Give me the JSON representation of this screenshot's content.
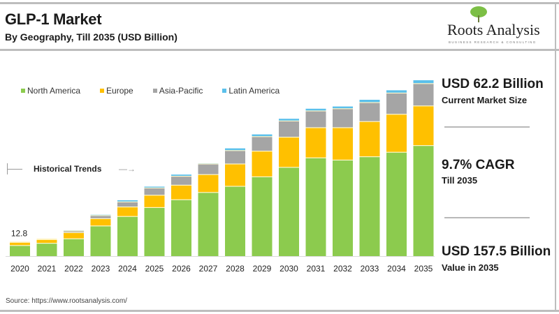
{
  "header": {
    "title": "GLP-1 Market",
    "subtitle": "By Geography, Till 2035 (USD Billion)"
  },
  "logo": {
    "name": "Roots Analysis",
    "tagline": "BUSINESS RESEARCH & CONSULTING",
    "icon": "tree-icon"
  },
  "annotation": {
    "historical_label": "Historical Trends",
    "first_value_label": "12.8"
  },
  "side_panel": {
    "current_value": "USD 62.2 Billion",
    "current_caption": "Current Market Size",
    "cagr_value": "9.7% CAGR",
    "cagr_caption": "Till 2035",
    "future_value": "USD 157.5 Billion",
    "future_caption": "Value in 2035"
  },
  "footer": {
    "source": "Source: https://www.rootsanalysis.com/"
  },
  "chart_data": {
    "type": "bar",
    "stacked": true,
    "title": "GLP-1 Market",
    "subtitle": "By Geography, Till 2035 (USD Billion)",
    "xlabel": "",
    "ylabel": "USD Billion",
    "ylim": [
      0,
      160
    ],
    "grid": false,
    "legend_position": "top-left",
    "categories": [
      "2020",
      "2021",
      "2022",
      "2023",
      "2024",
      "2025",
      "2026",
      "2027",
      "2028",
      "2029",
      "2030",
      "2031",
      "2032",
      "2033",
      "2034",
      "2035"
    ],
    "series": [
      {
        "name": "North America",
        "color": "#8ccb4e",
        "values": [
          9.5,
          11.5,
          15.5,
          27.0,
          35.5,
          43.5,
          50.5,
          57.0,
          62.5,
          71.0,
          79.5,
          88.0,
          86.0,
          89.0,
          93.0,
          99.0
        ]
      },
      {
        "name": "Europe",
        "color": "#ffc000",
        "values": [
          2.8,
          3.3,
          5.5,
          6.5,
          8.5,
          11.0,
          13.0,
          16.0,
          20.0,
          23.0,
          27.0,
          27.0,
          29.0,
          31.5,
          34.0,
          35.5
        ]
      },
      {
        "name": "Asia-Pacific",
        "color": "#a5a5a5",
        "values": [
          0.4,
          0.6,
          1.5,
          2.8,
          4.5,
          6.5,
          8.0,
          9.5,
          12.0,
          13.0,
          14.5,
          15.0,
          17.0,
          17.0,
          19.0,
          20.0
        ]
      },
      {
        "name": "Latin America",
        "color": "#5bc0eb",
        "values": [
          0.1,
          0.2,
          0.5,
          0.7,
          1.5,
          1.2,
          1.5,
          0.5,
          2.0,
          2.0,
          2.0,
          2.0,
          2.0,
          2.5,
          2.5,
          3.0
        ]
      }
    ],
    "data_labels": [
      {
        "category": "2020",
        "text": "12.8"
      }
    ],
    "annotations": [
      "Historical Trends"
    ]
  }
}
